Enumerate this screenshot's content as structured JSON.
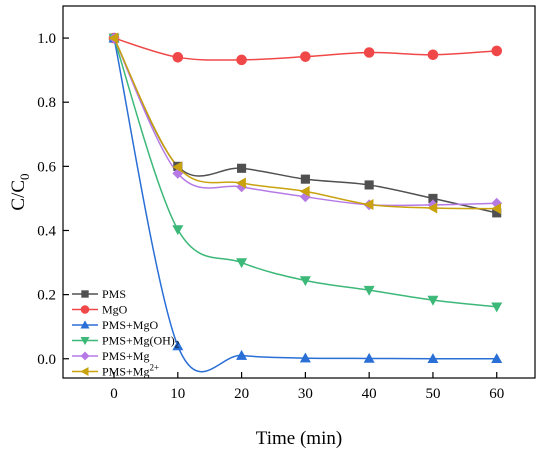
{
  "chart_data": {
    "type": "line",
    "xlabel": "Time (min)",
    "ylabel": "C/C",
    "ylabel_sub": "0",
    "xlim": [
      -8,
      66
    ],
    "ylim": [
      -0.06,
      1.1
    ],
    "x_ticks": [
      0,
      10,
      20,
      30,
      40,
      50,
      60
    ],
    "y_ticks": [
      0.0,
      0.2,
      0.4,
      0.6,
      0.8,
      1.0
    ],
    "x_tick_labels": [
      "0",
      "10",
      "20",
      "30",
      "40",
      "50",
      "60"
    ],
    "y_tick_labels": [
      "0.0",
      "0.2",
      "0.4",
      "0.6",
      "0.8",
      "1.0"
    ],
    "grid": false,
    "legend_position": "bottom-left",
    "x": [
      0,
      10,
      20,
      30,
      40,
      50,
      60
    ],
    "series": [
      {
        "name": "PMS",
        "marker": "square",
        "color": "#505050",
        "values": [
          1.0,
          0.6,
          0.594,
          0.56,
          0.542,
          0.5,
          0.455
        ]
      },
      {
        "name": "MgO",
        "marker": "circle",
        "color": "#f04848",
        "values": [
          1.0,
          0.94,
          0.932,
          0.942,
          0.955,
          0.948,
          0.96
        ]
      },
      {
        "name": "PMS+MgO",
        "marker": "triangle-up",
        "color": "#2a6fd6",
        "values": [
          1.0,
          0.04,
          0.01,
          0.002,
          0.001,
          0.0,
          0.0
        ]
      },
      {
        "name": "PMS+Mg(OH)",
        "name_sub": "2",
        "marker": "triangle-down",
        "color": "#3cb878",
        "values": [
          1.0,
          0.403,
          0.3,
          0.244,
          0.214,
          0.183,
          0.162
        ]
      },
      {
        "name": "PMS+Mg",
        "marker": "diamond",
        "color": "#b57ae6",
        "values": [
          1.0,
          0.578,
          0.536,
          0.505,
          0.48,
          0.48,
          0.485
        ]
      },
      {
        "name": "PMS+Mg",
        "name_sup": "2+",
        "marker": "triangle-left",
        "color": "#c9a20e",
        "values": [
          1.0,
          0.598,
          0.548,
          0.522,
          0.481,
          0.47,
          0.468
        ]
      }
    ]
  }
}
